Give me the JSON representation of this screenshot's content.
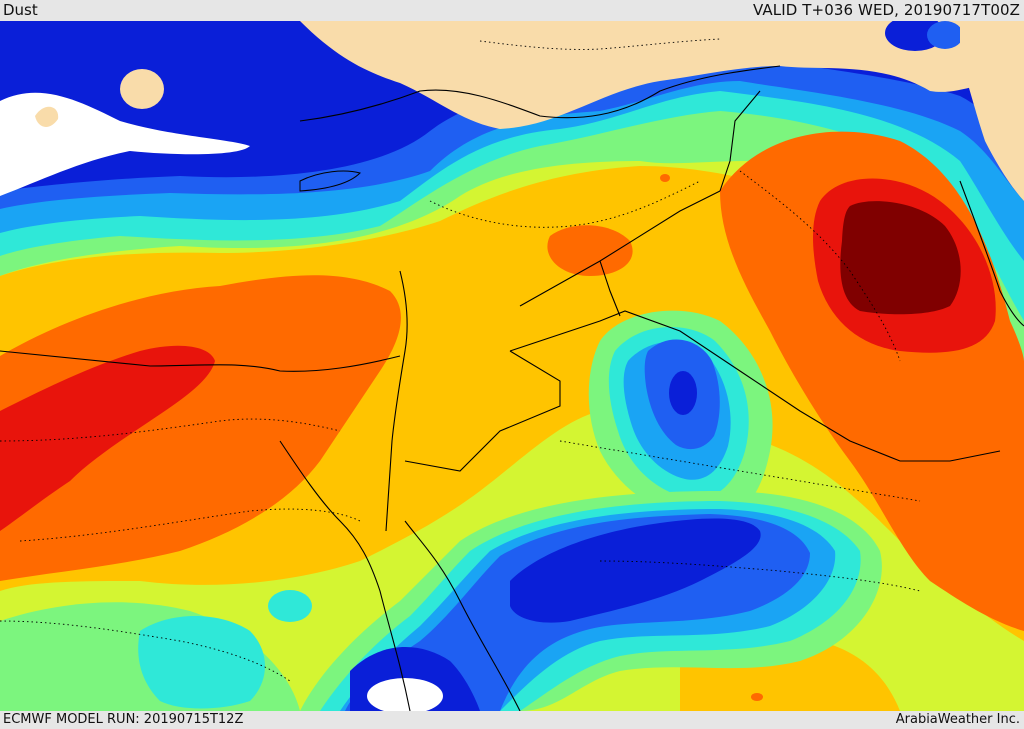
{
  "header": {
    "product": "Dust",
    "valid_time": "VALID T+036 WED, 20190717T00Z"
  },
  "footer": {
    "model_run": "ECMWF MODEL RUN: 20190715T12Z",
    "credit": "ArabiaWeather Inc."
  },
  "colors": {
    "land": "#f9dcaa",
    "low": "#ffffff",
    "navy": "#0a1fd8",
    "blue": "#1f5ff2",
    "azure": "#1aa4f4",
    "cyan": "#2fe8d8",
    "light_green": "#7cf57e",
    "yellow_green": "#d4f532",
    "amber": "#ffc400",
    "orange": "#ff6a00",
    "red": "#e8140c",
    "dark_red": "#800000",
    "borders": "#000000"
  }
}
